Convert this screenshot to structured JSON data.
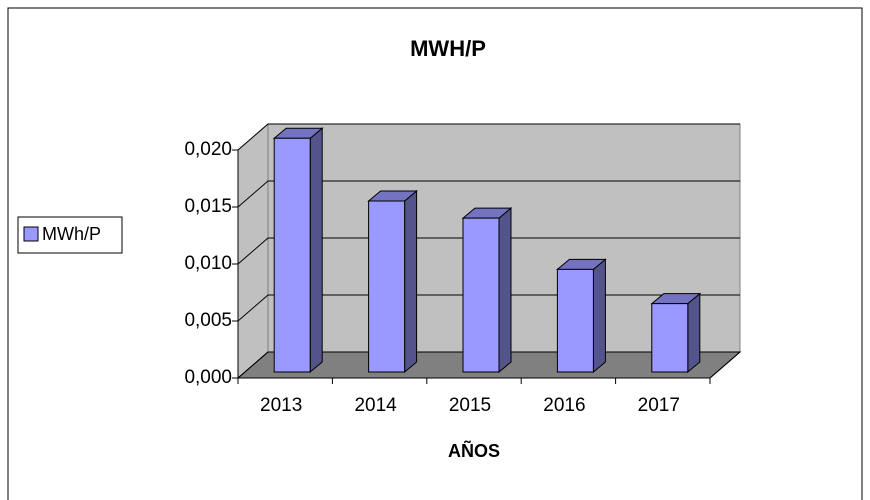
{
  "chart_data": {
    "type": "bar3d",
    "title": "MWH/P",
    "x_label": "AÑOS",
    "categories": [
      "2013",
      "2014",
      "2015",
      "2016",
      "2017"
    ],
    "series": [
      {
        "name": "MWh/P",
        "color": "#9999ff",
        "values": [
          0.0205,
          0.015,
          0.0135,
          0.009,
          0.006
        ]
      }
    ],
    "ylim": [
      0,
      0.02
    ],
    "yticks": [
      {
        "value": 0,
        "label": "0,000"
      },
      {
        "value": 0.005,
        "label": "0,005"
      },
      {
        "value": 0.01,
        "label": "0,010"
      },
      {
        "value": 0.015,
        "label": "0,015"
      },
      {
        "value": 0.02,
        "label": "0,020"
      }
    ],
    "grid": true,
    "legend": "left"
  }
}
